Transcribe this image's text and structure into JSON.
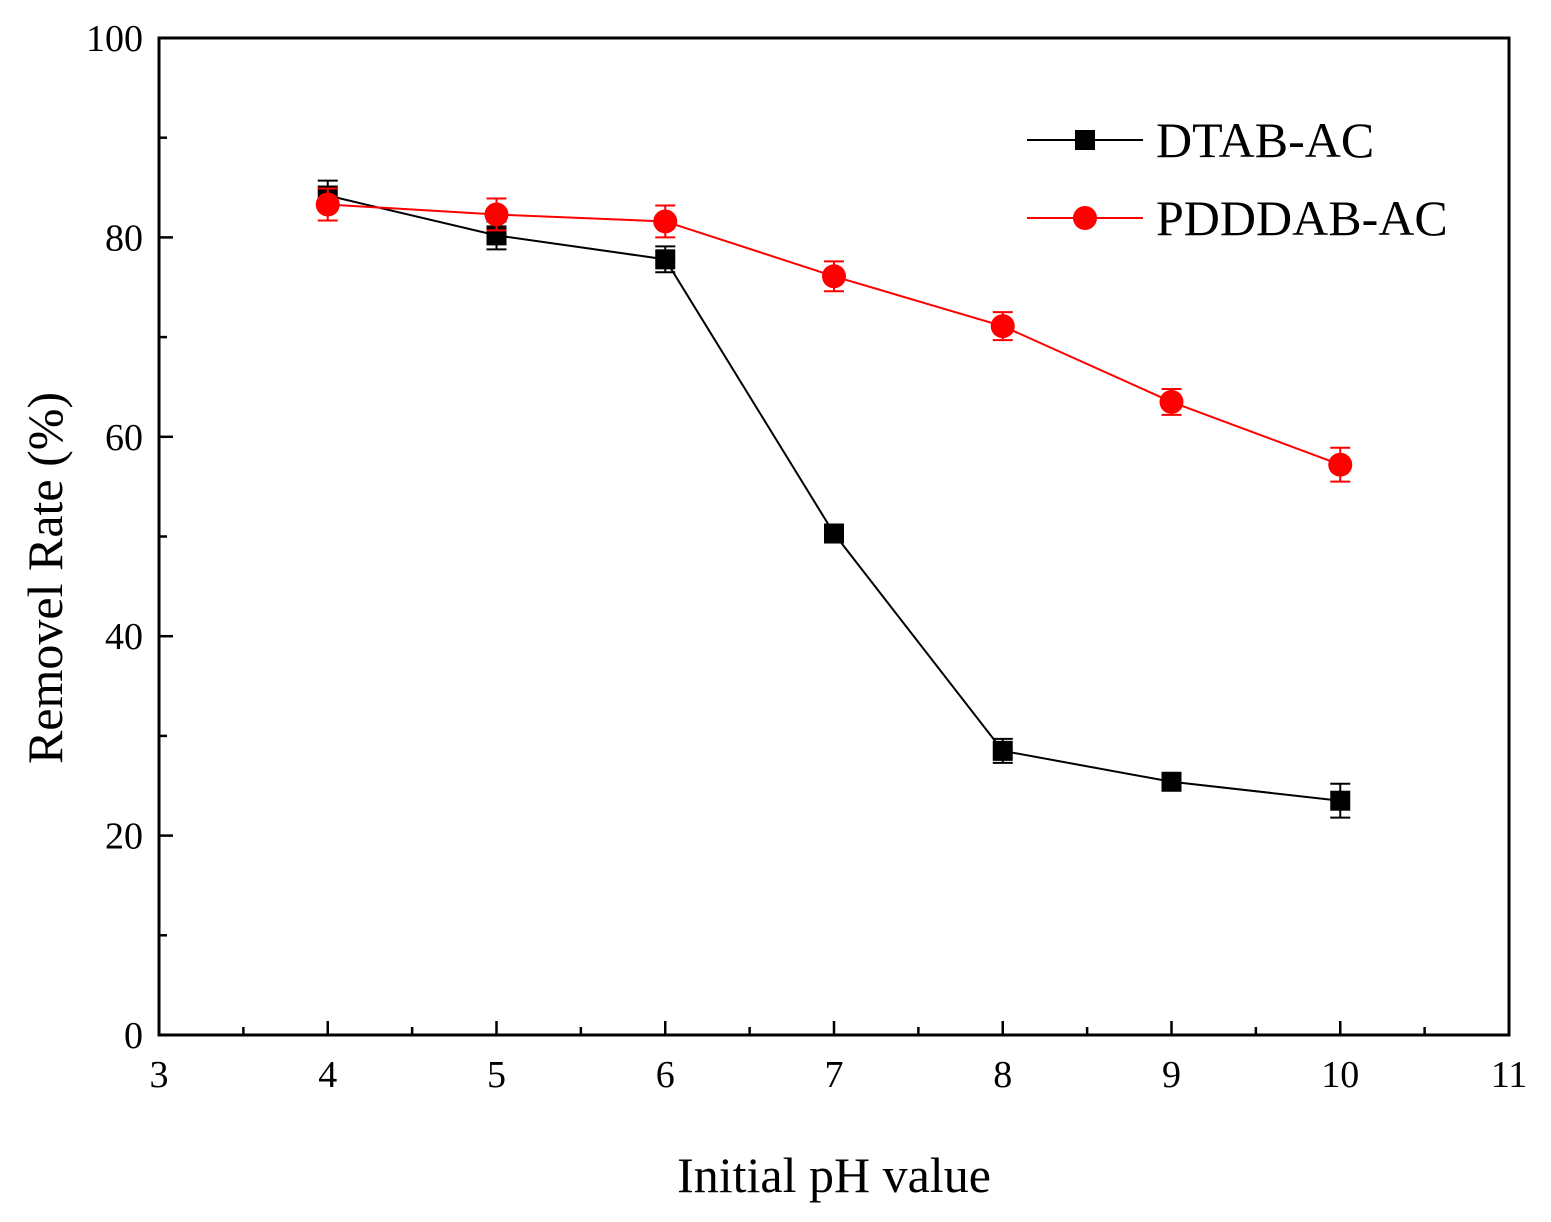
{
  "chart_data": {
    "type": "line",
    "title": "",
    "xlabel": "Initial pH value",
    "ylabel": "Removel Rate (%)",
    "xlim": [
      3,
      11
    ],
    "ylim": [
      0,
      100
    ],
    "x_major_ticks": [
      3,
      4,
      5,
      6,
      7,
      8,
      9,
      10,
      11
    ],
    "y_major_ticks": [
      0,
      20,
      40,
      60,
      80,
      100
    ],
    "legend_position": "top-right",
    "grid": false,
    "series": [
      {
        "name": "DTAB-AC",
        "color": "#000000",
        "marker": "square",
        "x": [
          4,
          5,
          6,
          7,
          8,
          9,
          10
        ],
        "values": [
          84.2,
          80.2,
          77.8,
          50.3,
          28.5,
          25.4,
          23.5
        ],
        "errors": [
          1.5,
          1.4,
          1.3,
          0.8,
          1.2,
          0.8,
          1.7
        ]
      },
      {
        "name": "PDDDAB-AC",
        "color": "#ff0000",
        "marker": "circle",
        "x": [
          4,
          5,
          6,
          7,
          8,
          9,
          10
        ],
        "values": [
          83.3,
          82.3,
          81.6,
          76.1,
          71.1,
          63.5,
          57.2
        ],
        "errors": [
          1.6,
          1.6,
          1.6,
          1.5,
          1.4,
          1.3,
          1.7
        ]
      }
    ]
  }
}
